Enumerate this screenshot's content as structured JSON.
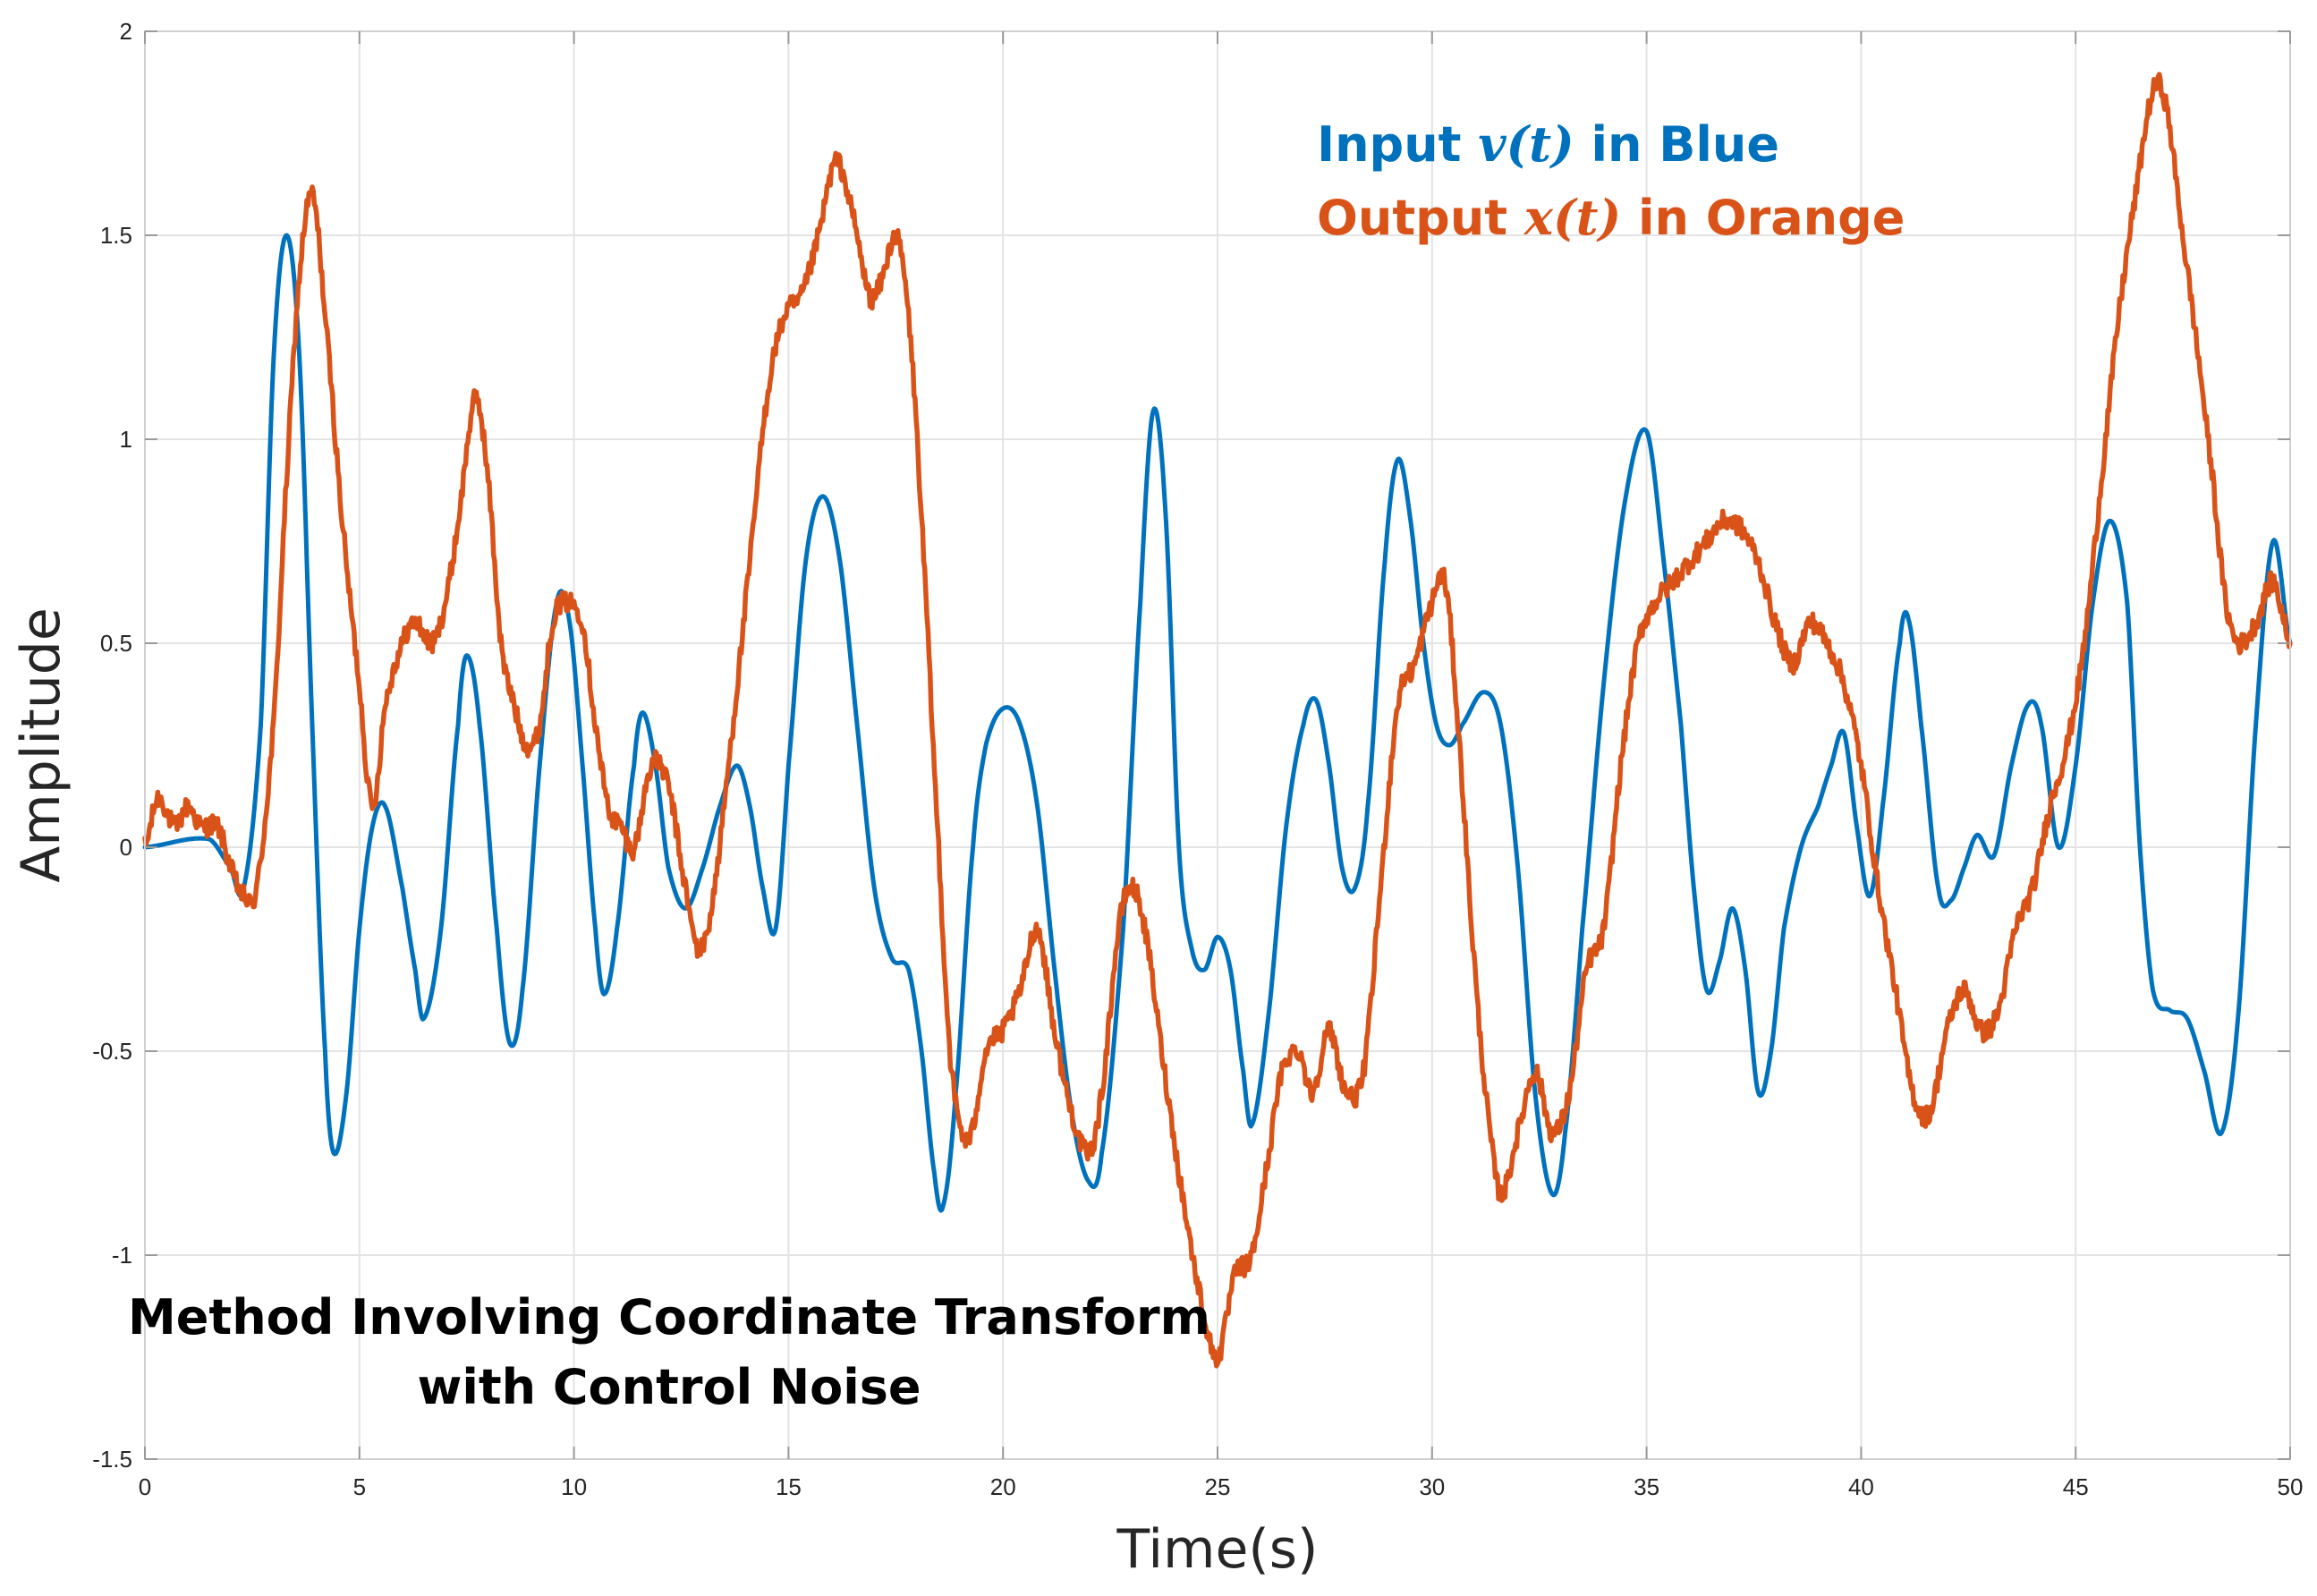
{
  "chart_data": {
    "type": "line",
    "xlabel": "Time(s)",
    "ylabel": "Amplitude",
    "xlim": [
      0,
      50
    ],
    "ylim": [
      -1.5,
      2
    ],
    "xticks": [
      0,
      5,
      10,
      15,
      20,
      25,
      30,
      35,
      40,
      45,
      50
    ],
    "xtick_labels": [
      "0",
      "5",
      "10",
      "15",
      "20",
      "25",
      "30",
      "35",
      "40",
      "45",
      "50"
    ],
    "yticks": [
      -1.5,
      -1,
      -0.5,
      0,
      0.5,
      1,
      1.5,
      2
    ],
    "ytick_labels": [
      "-1.5",
      "-1",
      "-0.5",
      "0",
      "0.5",
      "1",
      "1.5",
      "2"
    ],
    "grid": true,
    "legend": {
      "placement": "top-center",
      "entries": [
        {
          "prefix": "Input ",
          "var": "v(t)",
          "suffix": " in Blue",
          "color": "#0072BD"
        },
        {
          "prefix": "Output ",
          "var": "x(t)",
          "suffix": " in Orange",
          "color": "#D95319"
        }
      ]
    },
    "annotation": {
      "lines": [
        "Method Involving Coordinate Transform",
        "with Control Noise"
      ],
      "placement": "bottom-left"
    },
    "series": [
      {
        "name": "Input v(t)",
        "color": "#0072BD",
        "noise": 0,
        "points": [
          [
            0,
            0
          ],
          [
            1.5,
            0.02
          ],
          [
            2,
            -0.05
          ],
          [
            2.3,
            -0.1
          ],
          [
            2.7,
            0.3
          ],
          [
            3,
            1.2
          ],
          [
            3.3,
            1.5
          ],
          [
            3.6,
            1.2
          ],
          [
            3.9,
            0.3
          ],
          [
            4.2,
            -0.5
          ],
          [
            4.4,
            -0.75
          ],
          [
            4.7,
            -0.6
          ],
          [
            5,
            -0.2
          ],
          [
            5.3,
            0.05
          ],
          [
            5.6,
            0.1
          ],
          [
            6,
            -0.1
          ],
          [
            6.3,
            -0.3
          ],
          [
            6.5,
            -0.42
          ],
          [
            6.9,
            -0.2
          ],
          [
            7.3,
            0.3
          ],
          [
            7.5,
            0.47
          ],
          [
            7.8,
            0.3
          ],
          [
            8.2,
            -0.2
          ],
          [
            8.5,
            -0.48
          ],
          [
            8.8,
            -0.35
          ],
          [
            9.2,
            0.2
          ],
          [
            9.6,
            0.6
          ],
          [
            9.9,
            0.55
          ],
          [
            10.2,
            0.2
          ],
          [
            10.5,
            -0.2
          ],
          [
            10.7,
            -0.36
          ],
          [
            11,
            -0.2
          ],
          [
            11.4,
            0.2
          ],
          [
            11.6,
            0.33
          ],
          [
            11.9,
            0.2
          ],
          [
            12.2,
            -0.05
          ],
          [
            12.6,
            -0.15
          ],
          [
            13,
            -0.05
          ],
          [
            13.4,
            0.1
          ],
          [
            13.8,
            0.2
          ],
          [
            14.1,
            0.1
          ],
          [
            14.4,
            -0.1
          ],
          [
            14.7,
            -0.2
          ],
          [
            15,
            0.2
          ],
          [
            15.4,
            0.7
          ],
          [
            15.8,
            0.86
          ],
          [
            16.2,
            0.7
          ],
          [
            16.6,
            0.3
          ],
          [
            17,
            -0.1
          ],
          [
            17.4,
            -0.27
          ],
          [
            17.8,
            -0.3
          ],
          [
            18.1,
            -0.5
          ],
          [
            18.4,
            -0.8
          ],
          [
            18.6,
            -0.88
          ],
          [
            18.9,
            -0.6
          ],
          [
            19.3,
            0
          ],
          [
            19.6,
            0.25
          ],
          [
            20,
            0.34
          ],
          [
            20.4,
            0.3
          ],
          [
            20.8,
            0.1
          ],
          [
            21.2,
            -0.3
          ],
          [
            21.6,
            -0.65
          ],
          [
            22,
            -0.82
          ],
          [
            22.3,
            -0.75
          ],
          [
            22.8,
            -0.2
          ],
          [
            23.2,
            0.6
          ],
          [
            23.5,
            1.07
          ],
          [
            23.8,
            0.8
          ],
          [
            24.1,
            0
          ],
          [
            24.4,
            -0.25
          ],
          [
            24.7,
            -0.3
          ],
          [
            25,
            -0.22
          ],
          [
            25.3,
            -0.3
          ],
          [
            25.6,
            -0.55
          ],
          [
            25.8,
            -0.68
          ],
          [
            26.2,
            -0.4
          ],
          [
            26.6,
            0.05
          ],
          [
            27,
            0.3
          ],
          [
            27.3,
            0.36
          ],
          [
            27.6,
            0.2
          ],
          [
            27.9,
            -0.05
          ],
          [
            28.2,
            -0.1
          ],
          [
            28.5,
            0.1
          ],
          [
            28.9,
            0.7
          ],
          [
            29.2,
            0.95
          ],
          [
            29.5,
            0.8
          ],
          [
            29.8,
            0.5
          ],
          [
            30.1,
            0.3
          ],
          [
            30.4,
            0.25
          ],
          [
            30.7,
            0.3
          ],
          [
            31.2,
            0.38
          ],
          [
            31.6,
            0.3
          ],
          [
            32,
            -0.05
          ],
          [
            32.4,
            -0.6
          ],
          [
            32.8,
            -0.85
          ],
          [
            33.1,
            -0.7
          ],
          [
            33.5,
            -0.2
          ],
          [
            34,
            0.4
          ],
          [
            34.5,
            0.85
          ],
          [
            35,
            1.02
          ],
          [
            35.4,
            0.7
          ],
          [
            35.8,
            0.3
          ],
          [
            36.1,
            -0.1
          ],
          [
            36.4,
            -0.35
          ],
          [
            36.7,
            -0.28
          ],
          [
            37,
            -0.15
          ],
          [
            37.3,
            -0.3
          ],
          [
            37.6,
            -0.6
          ],
          [
            37.9,
            -0.5
          ],
          [
            38.2,
            -0.2
          ],
          [
            38.6,
            0
          ],
          [
            39,
            0.1
          ],
          [
            39.3,
            0.2
          ],
          [
            39.6,
            0.28
          ],
          [
            39.9,
            0.05
          ],
          [
            40.2,
            -0.12
          ],
          [
            40.5,
            0.1
          ],
          [
            40.9,
            0.5
          ],
          [
            41.1,
            0.56
          ],
          [
            41.4,
            0.3
          ],
          [
            41.8,
            -0.1
          ],
          [
            42.1,
            -0.13
          ],
          [
            42.4,
            -0.05
          ],
          [
            42.7,
            0.03
          ],
          [
            43.1,
            -0.02
          ],
          [
            43.5,
            0.2
          ],
          [
            43.9,
            0.35
          ],
          [
            44.2,
            0.3
          ],
          [
            44.6,
            0
          ],
          [
            45,
            0.2
          ],
          [
            45.4,
            0.6
          ],
          [
            45.8,
            0.8
          ],
          [
            46.2,
            0.6
          ],
          [
            46.5,
            0
          ],
          [
            46.8,
            -0.35
          ],
          [
            47.2,
            -0.4
          ],
          [
            47.6,
            -0.42
          ],
          [
            48,
            -0.55
          ],
          [
            48.4,
            -0.7
          ],
          [
            48.8,
            -0.4
          ],
          [
            49.2,
            0.3
          ],
          [
            49.6,
            0.75
          ],
          [
            50,
            0.5
          ]
        ]
      },
      {
        "name": "Output x(t)",
        "color": "#D95319",
        "noise": 0.025,
        "points": [
          [
            0,
            0
          ],
          [
            0.3,
            0.12
          ],
          [
            0.7,
            0.05
          ],
          [
            1,
            0.1
          ],
          [
            1.3,
            0.05
          ],
          [
            1.7,
            0.05
          ],
          [
            2,
            -0.05
          ],
          [
            2.3,
            -0.12
          ],
          [
            2.6,
            -0.1
          ],
          [
            3,
            0.3
          ],
          [
            3.3,
            0.9
          ],
          [
            3.6,
            1.4
          ],
          [
            3.9,
            1.6
          ],
          [
            4.2,
            1.3
          ],
          [
            4.6,
            0.8
          ],
          [
            5,
            0.4
          ],
          [
            5.3,
            0.1
          ],
          [
            5.6,
            0.35
          ],
          [
            6,
            0.5
          ],
          [
            6.3,
            0.55
          ],
          [
            6.7,
            0.5
          ],
          [
            7,
            0.6
          ],
          [
            7.3,
            0.8
          ],
          [
            7.7,
            1.1
          ],
          [
            8,
            0.9
          ],
          [
            8.3,
            0.5
          ],
          [
            8.6,
            0.35
          ],
          [
            8.9,
            0.25
          ],
          [
            9.2,
            0.3
          ],
          [
            9.5,
            0.55
          ],
          [
            9.8,
            0.6
          ],
          [
            10.2,
            0.55
          ],
          [
            10.5,
            0.3
          ],
          [
            10.8,
            0.1
          ],
          [
            11.1,
            0.05
          ],
          [
            11.4,
            0
          ],
          [
            11.8,
            0.2
          ],
          [
            12.2,
            0.15
          ],
          [
            12.6,
            -0.1
          ],
          [
            12.9,
            -0.25
          ],
          [
            13.2,
            -0.15
          ],
          [
            13.6,
            0.2
          ],
          [
            14,
            0.6
          ],
          [
            14.5,
            1.1
          ],
          [
            14.9,
            1.3
          ],
          [
            15.3,
            1.35
          ],
          [
            15.7,
            1.5
          ],
          [
            16.1,
            1.68
          ],
          [
            16.5,
            1.55
          ],
          [
            16.9,
            1.35
          ],
          [
            17.2,
            1.4
          ],
          [
            17.5,
            1.5
          ],
          [
            17.8,
            1.3
          ],
          [
            18.1,
            0.8
          ],
          [
            18.5,
            0
          ],
          [
            18.8,
            -0.55
          ],
          [
            19.2,
            -0.72
          ],
          [
            19.6,
            -0.5
          ],
          [
            20,
            -0.45
          ],
          [
            20.4,
            -0.35
          ],
          [
            20.8,
            -0.2
          ],
          [
            21.2,
            -0.45
          ],
          [
            21.6,
            -0.65
          ],
          [
            22,
            -0.75
          ],
          [
            22.3,
            -0.6
          ],
          [
            22.7,
            -0.2
          ],
          [
            23,
            -0.1
          ],
          [
            23.3,
            -0.2
          ],
          [
            23.7,
            -0.5
          ],
          [
            24.1,
            -0.8
          ],
          [
            24.6,
            -1.1
          ],
          [
            25,
            -1.25
          ],
          [
            25.4,
            -1.05
          ],
          [
            25.8,
            -1
          ],
          [
            26.2,
            -0.75
          ],
          [
            26.5,
            -0.55
          ],
          [
            26.9,
            -0.5
          ],
          [
            27.2,
            -0.6
          ],
          [
            27.6,
            -0.45
          ],
          [
            28,
            -0.6
          ],
          [
            28.4,
            -0.55
          ],
          [
            28.8,
            -0.1
          ],
          [
            29.2,
            0.35
          ],
          [
            29.6,
            0.45
          ],
          [
            30,
            0.6
          ],
          [
            30.3,
            0.65
          ],
          [
            30.6,
            0.3
          ],
          [
            31,
            -0.3
          ],
          [
            31.3,
            -0.65
          ],
          [
            31.6,
            -0.85
          ],
          [
            32,
            -0.7
          ],
          [
            32.4,
            -0.55
          ],
          [
            32.8,
            -0.7
          ],
          [
            33.2,
            -0.6
          ],
          [
            33.6,
            -0.3
          ],
          [
            34,
            -0.2
          ],
          [
            34.4,
            0.2
          ],
          [
            34.8,
            0.5
          ],
          [
            35.2,
            0.6
          ],
          [
            35.6,
            0.65
          ],
          [
            36,
            0.7
          ],
          [
            36.4,
            0.75
          ],
          [
            36.8,
            0.8
          ],
          [
            37.2,
            0.78
          ],
          [
            37.6,
            0.7
          ],
          [
            38,
            0.55
          ],
          [
            38.4,
            0.45
          ],
          [
            38.8,
            0.55
          ],
          [
            39.2,
            0.5
          ],
          [
            39.6,
            0.4
          ],
          [
            40,
            0.2
          ],
          [
            40.4,
            -0.1
          ],
          [
            40.8,
            -0.35
          ],
          [
            41.2,
            -0.6
          ],
          [
            41.6,
            -0.65
          ],
          [
            42,
            -0.45
          ],
          [
            42.4,
            -0.35
          ],
          [
            42.8,
            -0.45
          ],
          [
            43.2,
            -0.4
          ],
          [
            43.6,
            -0.2
          ],
          [
            44,
            -0.1
          ],
          [
            44.4,
            0.1
          ],
          [
            44.8,
            0.25
          ],
          [
            45.2,
            0.5
          ],
          [
            45.6,
            0.9
          ],
          [
            46,
            1.3
          ],
          [
            46.4,
            1.6
          ],
          [
            46.8,
            1.85
          ],
          [
            47.1,
            1.82
          ],
          [
            47.5,
            1.5
          ],
          [
            47.8,
            1.25
          ],
          [
            48.2,
            0.9
          ],
          [
            48.5,
            0.6
          ],
          [
            48.8,
            0.5
          ],
          [
            49.2,
            0.55
          ],
          [
            49.6,
            0.65
          ],
          [
            50,
            0.5
          ]
        ]
      }
    ]
  }
}
